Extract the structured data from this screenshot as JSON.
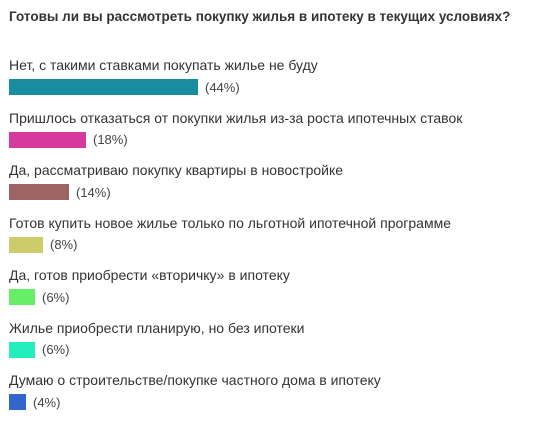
{
  "chart_data": {
    "type": "bar",
    "orientation": "horizontal",
    "title": "Готовы ли вы рассмотреть покупку жилья в ипотеку в текущих условиях?",
    "unit": "%",
    "categories": [
      "Нет, с такими ставками покупать жилье не буду",
      "Пришлось отказаться от покупки жилья из-за роста ипотечных ставок",
      "Да, рассматриваю покупку квартиры в новостройке",
      "Готов купить новое жилье только по льготной ипотечной программе",
      "Да, готов приобрести «вторичку» в ипотеку",
      "Жилье приобрести планирую, но без ипотеки",
      "Думаю о строительстве/покупке частного дома в ипотеку"
    ],
    "values": [
      44,
      18,
      14,
      8,
      6,
      6,
      4
    ],
    "value_labels": [
      "(44%)",
      "(18%)",
      "(14%)",
      "(8%)",
      "(6%)",
      "(6%)",
      "(4%)"
    ],
    "colors": [
      "#1a8ca0",
      "#d63a9e",
      "#9c6464",
      "#cccc6a",
      "#66ee66",
      "#22eebb",
      "#3366cc"
    ]
  }
}
